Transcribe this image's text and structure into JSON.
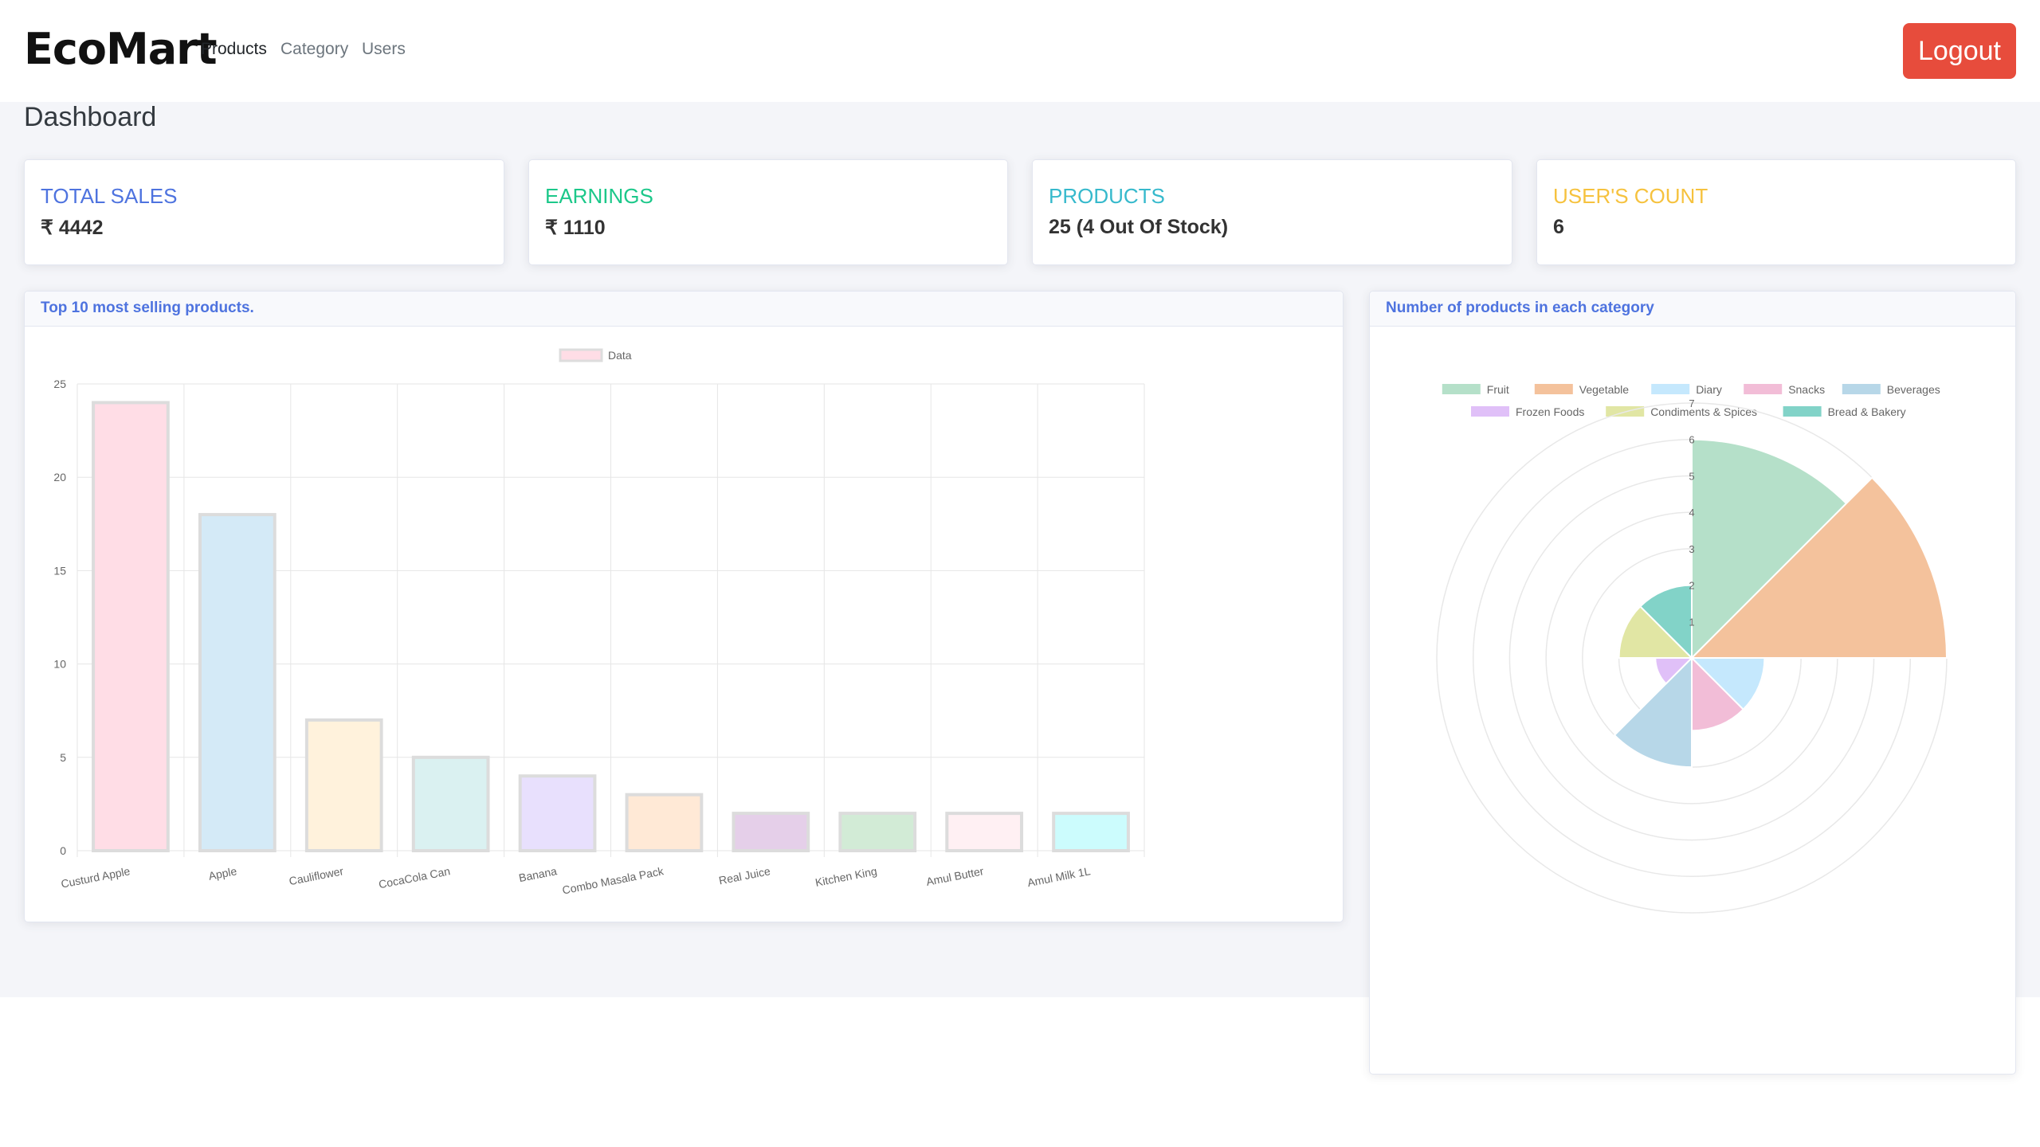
{
  "brand": "EcoMart",
  "nav": {
    "products": "Products",
    "category": "Category",
    "users": "Users"
  },
  "logout_label": "Logout",
  "page_title": "Dashboard",
  "stats": [
    {
      "title": "TOTAL SALES",
      "value": "₹ 4442",
      "color": "#4e73df"
    },
    {
      "title": "EARNINGS",
      "value": "₹ 1110",
      "color": "#1cc88a"
    },
    {
      "title": "PRODUCTS",
      "value": "25 (4 Out Of Stock)",
      "color": "#36b9cc"
    },
    {
      "title": "USER'S COUNT",
      "value": "6",
      "color": "#f6c23e"
    }
  ],
  "bar_card_title": "Top 10 most selling products.",
  "polar_card_title": "Number of products in each category",
  "chart_data": [
    {
      "type": "bar",
      "legend": [
        "Data"
      ],
      "categories": [
        "Custurd Apple",
        "Apple",
        "Cauliflower",
        "CocaCola Can",
        "Banana",
        "Combo Masala Pack",
        "Real Juice",
        "Kitchen King",
        "Amul Butter",
        "Amul Milk 1L"
      ],
      "series": [
        {
          "name": "Data",
          "values": [
            24,
            18,
            7,
            5,
            4,
            3,
            2,
            2,
            2,
            2
          ]
        }
      ],
      "colors": [
        "#ffdde6",
        "#d4eaf7",
        "#fff2dc",
        "#daf1f1",
        "#e8e0fd",
        "#ffe9d6",
        "#e5cfe9",
        "#d2ebd6",
        "#fff0f3",
        "#ccfcfd"
      ],
      "yticks": [
        "0",
        "5",
        "10",
        "15",
        "20",
        "25"
      ],
      "ylim": [
        0,
        25
      ],
      "grid": true,
      "legend_position": "top"
    },
    {
      "type": "polarArea",
      "categories": [
        "Fruit",
        "Vegetable",
        "Diary",
        "Snacks",
        "Beverages",
        "Frozen Foods",
        "Condiments & Spices",
        "Bread & Bakery"
      ],
      "values": [
        6,
        7,
        2,
        2,
        3,
        1,
        2,
        2
      ],
      "colors": [
        "#b5e0c9",
        "#f4c29c",
        "#c5e8fd",
        "#f2bdd7",
        "#b7d7e8",
        "#e0c0f8",
        "#e1e6a4",
        "#82d3c8"
      ],
      "rticks": [
        "0",
        "1",
        "2",
        "3",
        "4",
        "5",
        "6",
        "7"
      ],
      "rlim": [
        0,
        7
      ],
      "legend_position": "top"
    }
  ]
}
